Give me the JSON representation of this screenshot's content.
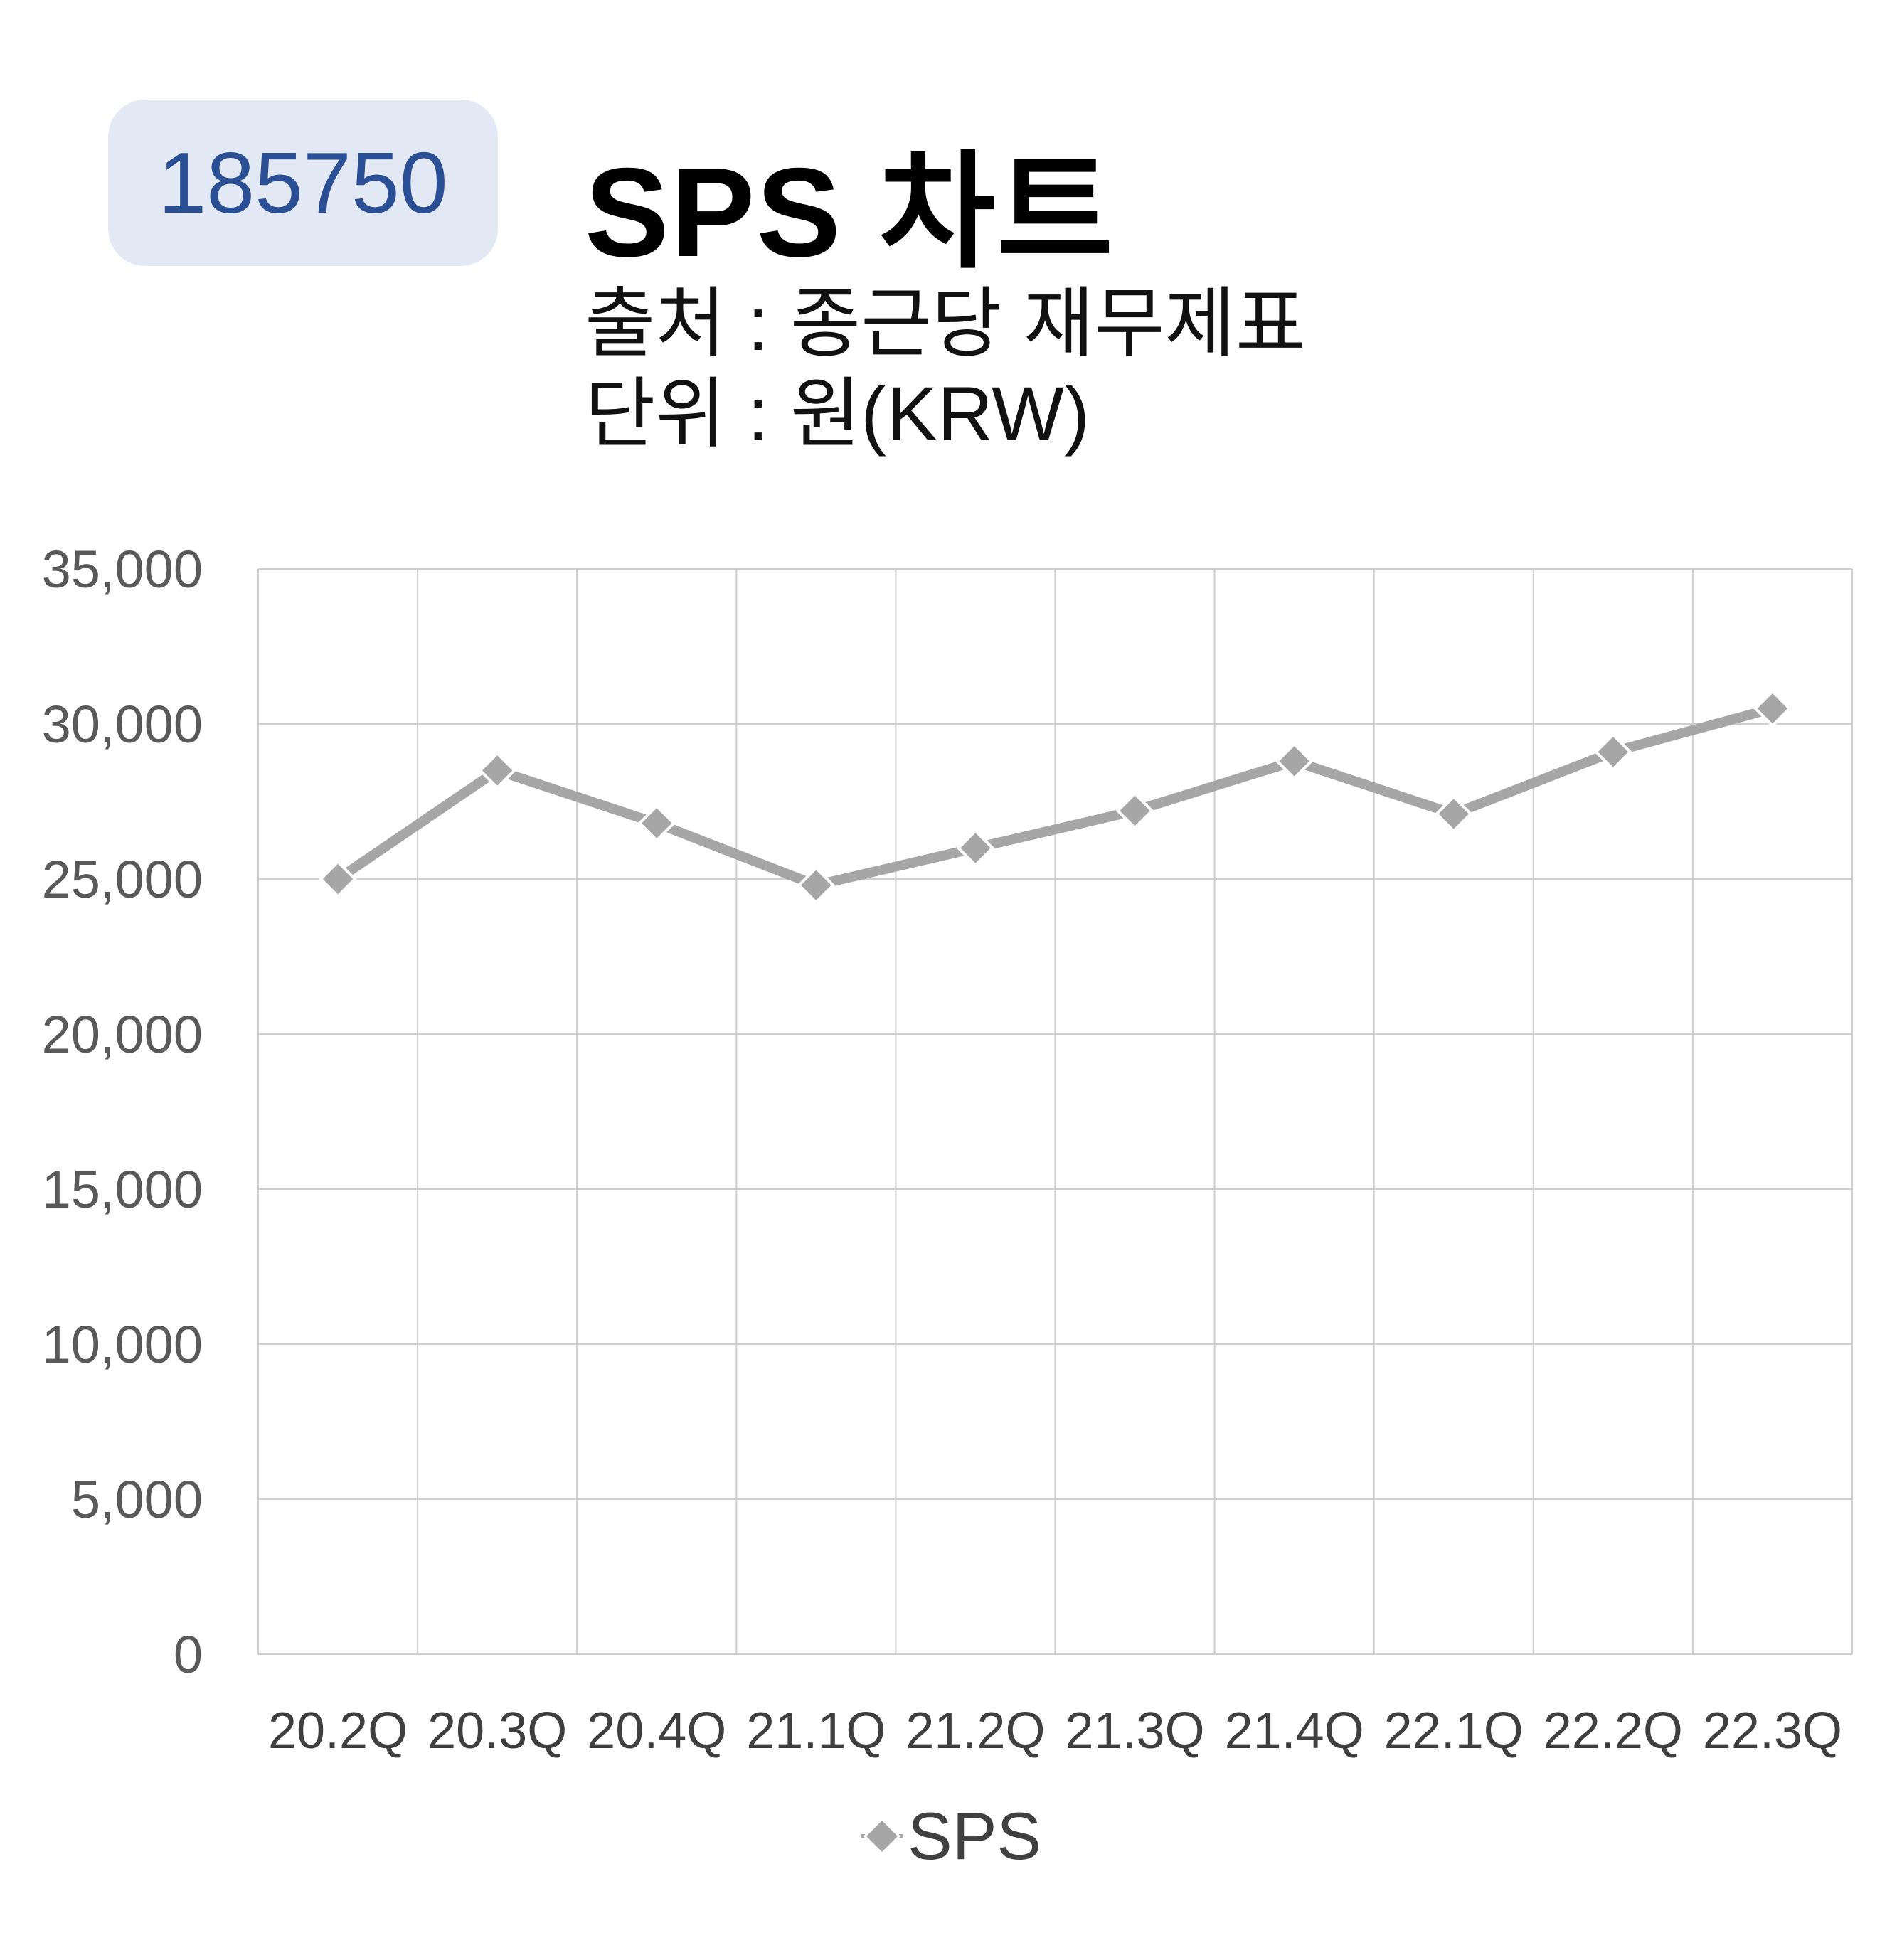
{
  "badge": {
    "code": "185750",
    "background": "#e3e9f4",
    "color": "#2b4f94"
  },
  "header": {
    "title": "SPS 차트",
    "source": "출처 : 종근당 재무제표",
    "unit": "단위 : 원(KRW)"
  },
  "chart_data": {
    "type": "line",
    "categories": [
      "20.2Q",
      "20.3Q",
      "20.4Q",
      "21.1Q",
      "21.2Q",
      "21.3Q",
      "21.4Q",
      "22.1Q",
      "22.2Q",
      "22.3Q"
    ],
    "series": [
      {
        "name": "SPS",
        "values": [
          25000,
          28500,
          26800,
          24800,
          26000,
          27200,
          28800,
          27100,
          29100,
          30500
        ],
        "color": "#a6a6a6",
        "marker": "diamond"
      }
    ],
    "ylim": [
      0,
      35000
    ],
    "yticks": [
      0,
      5000,
      10000,
      15000,
      20000,
      25000,
      30000,
      35000
    ],
    "ytick_labels": [
      "0",
      "5,000",
      "10,000",
      "15,000",
      "20,000",
      "25,000",
      "30,000",
      "35,000"
    ],
    "grid": true,
    "legend": "bottom",
    "legend_label": "SPS"
  }
}
